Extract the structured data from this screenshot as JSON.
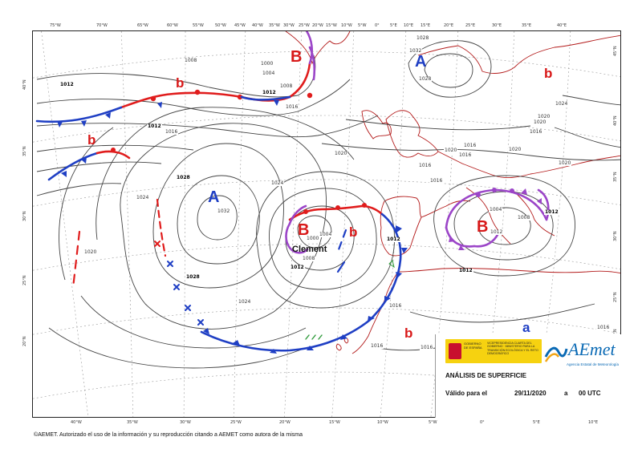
{
  "map": {
    "title": "ANÁLISIS DE SUPERFICIE",
    "valid_label": "Válido para el",
    "valid_date": "29/11/2020",
    "valid_sep": "a",
    "valid_time": "00 UTC",
    "storm_name": "Clement",
    "copyright": "©AEMET. Autorizado el uso de la información y su reproducción citando a AEMET como autora de la misma"
  },
  "logos": {
    "gov_line1": "GOBIERNO DE ESPAÑA",
    "gov_line2": "VICEPRESIDENCIA CUARTA DEL GOBIERNO · MINISTERIO PARA LA TRANSICIÓN ECOLÓGICA Y EL RETO DEMOGRÁFICO",
    "aemet_wordmark": "AEmet",
    "aemet_subtitle": "Agencia Estatal de Meteorología"
  },
  "pressure_centers": [
    {
      "kind": "high",
      "label": "A",
      "size": "big"
    },
    {
      "kind": "high",
      "label": "A",
      "size": "big"
    },
    {
      "kind": "high",
      "label": "a",
      "size": "small"
    },
    {
      "kind": "low",
      "label": "B",
      "size": "big"
    },
    {
      "kind": "low",
      "label": "B",
      "size": "big"
    },
    {
      "kind": "low",
      "label": "B",
      "size": "big"
    },
    {
      "kind": "low",
      "label": "b",
      "size": "small"
    },
    {
      "kind": "low",
      "label": "b",
      "size": "small"
    },
    {
      "kind": "low",
      "label": "b",
      "size": "small"
    },
    {
      "kind": "low",
      "label": "b",
      "size": "small"
    },
    {
      "kind": "low",
      "label": "b",
      "size": "small"
    },
    {
      "kind": "low",
      "label": "b",
      "size": "small"
    }
  ],
  "isobar_labels": [
    "1012",
    "1008",
    "1000",
    "1004",
    "1008",
    "1012",
    "1016",
    "1032",
    "1028",
    "1028",
    "1012",
    "1016",
    "1020",
    "1024",
    "1028",
    "1032",
    "1024",
    "1028",
    "1024",
    "1020",
    "1020",
    "1016",
    "1004",
    "1000",
    "1008",
    "1012",
    "1012",
    "1016",
    "1016",
    "1016",
    "1020",
    "1020",
    "1016",
    "1012",
    "1004",
    "1012",
    "1012",
    "1008",
    "1016",
    "1020",
    "1016",
    "1016",
    "1020",
    "1024",
    "1016"
  ],
  "top_ticks": [
    "75°W",
    "70°W",
    "65°W",
    "60°W",
    "55°W",
    "50°W",
    "45°W",
    "40°W",
    "35°W",
    "30°W",
    "25°W",
    "20°W",
    "15°W",
    "10°W",
    "5°W",
    "0°",
    "5°E",
    "10°E",
    "15°E",
    "20°E",
    "25°E",
    "30°E",
    "35°E",
    "40°E"
  ],
  "bottom_ticks": [
    "40°W",
    "35°W",
    "30°W",
    "25°W",
    "20°W",
    "15°W",
    "10°W",
    "5°W",
    "0°",
    "5°E",
    "10°E"
  ],
  "left_ticks": [
    "40°N",
    "35°N",
    "30°N",
    "25°N",
    "20°N"
  ],
  "right_ticks": [
    "45°N",
    "40°N",
    "35°N",
    "30°N",
    "25°N",
    "20°N"
  ],
  "colors": {
    "warm_front": "#e01c1c",
    "cold_front": "#1f3fc4",
    "occluded_front": "#9b45c8",
    "isobar": "#444444",
    "coast": "#b31a1a",
    "trough": "#e01c1c"
  }
}
